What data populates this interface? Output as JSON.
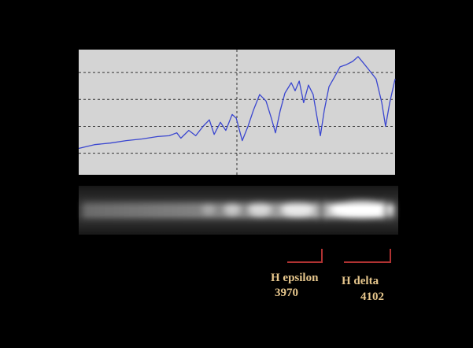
{
  "chart_data": {
    "type": "line",
    "x": [
      0,
      5,
      10,
      15,
      20,
      25,
      28.6,
      31,
      32.3,
      34.8,
      37,
      39.3,
      41.3,
      42.8,
      44.8,
      46.5,
      48.5,
      49.8,
      51.7,
      53.5,
      55.2,
      57.2,
      59.2,
      60.9,
      62.2,
      63.7,
      65.2,
      67.2,
      68.4,
      69.7,
      71.1,
      72.6,
      74.1,
      75.4,
      76.4,
      77.6,
      79.1,
      80.8,
      82.6,
      84.6,
      86.6,
      88.3,
      90,
      92,
      94,
      95.8,
      97,
      98.3,
      100
    ],
    "series": [
      {
        "color": "#3a46d0",
        "values": [
          0.18,
          0.32,
          0.38,
          0.47,
          0.53,
          0.62,
          0.65,
          0.76,
          0.56,
          0.85,
          0.65,
          1.0,
          1.24,
          0.7,
          1.15,
          0.85,
          1.44,
          1.3,
          0.47,
          1.0,
          1.59,
          2.18,
          1.94,
          1.3,
          0.76,
          1.59,
          2.24,
          2.62,
          2.32,
          2.68,
          1.88,
          2.53,
          2.18,
          1.29,
          0.65,
          1.59,
          2.47,
          2.82,
          3.21,
          3.29,
          3.41,
          3.59,
          3.35,
          3.06,
          2.76,
          1.88,
          1.0,
          1.88,
          2.76
        ]
      }
    ],
    "xlim": [
      0,
      100
    ],
    "xticks": [
      50
    ],
    "ylim": [
      -0.8,
      3.85
    ],
    "yticks": [
      0,
      1,
      2,
      3
    ],
    "grid": true,
    "annotations": [
      {
        "label": "H epsilon",
        "wavelength": 3970
      },
      {
        "label": "H delta",
        "wavelength": 4102
      }
    ]
  }
}
